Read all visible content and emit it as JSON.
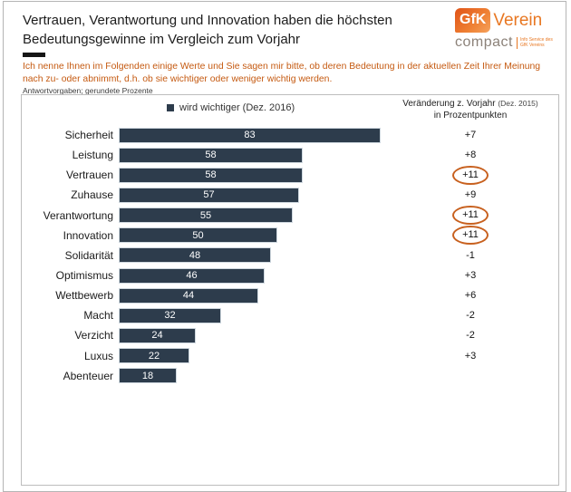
{
  "slide": {
    "title": "Vertrauen, Verantwortung und Innovation haben die höchsten Bedeutungsgewinne im Vergleich zum Vorjahr",
    "instruction": "Ich nenne Ihnen im Folgenden einige Werte und Sie sagen mir bitte, ob deren Bedeutung in der aktuellen Zeit Ihrer Meinung nach zu- oder abnimmt, d.h. ob sie wichtiger oder weniger wichtig werden.",
    "note": "Antwortvorgaben; gerundete Prozente"
  },
  "logo": {
    "gfk": "GfK",
    "verein": "Verein",
    "compact": "compact",
    "tagline_line1": "Info Service des",
    "tagline_line2": "GfK Vereins"
  },
  "chart_data": {
    "type": "bar",
    "orientation": "horizontal",
    "legend_label": "wird wichtiger (Dez. 2016)",
    "change_header": {
      "main": "Veränderung z. Vorjahr",
      "paren": "(Dez. 2015)",
      "line2": "in Prozentpunkten"
    },
    "categories": [
      "Sicherheit",
      "Leistung",
      "Vertrauen",
      "Zuhause",
      "Verantwortung",
      "Innovation",
      "Solidarität",
      "Optimismus",
      "Wettbewerb",
      "Macht",
      "Verzicht",
      "Luxus",
      "Abenteuer"
    ],
    "values": [
      83,
      58,
      58,
      57,
      55,
      50,
      48,
      46,
      44,
      32,
      24,
      22,
      18
    ],
    "changes": [
      "+7",
      "+8",
      "+11",
      "+9",
      "+11",
      "+11",
      "-1",
      "+3",
      "+6",
      "-2",
      "-2",
      "+3",
      ""
    ],
    "highlighted": [
      false,
      false,
      true,
      false,
      true,
      true,
      false,
      false,
      false,
      false,
      false,
      false,
      false
    ],
    "xlim": [
      0,
      100
    ],
    "colors": {
      "bar": "#2d3c4c",
      "highlight_ring": "#c8611f",
      "accent_text": "#c55a11"
    }
  }
}
